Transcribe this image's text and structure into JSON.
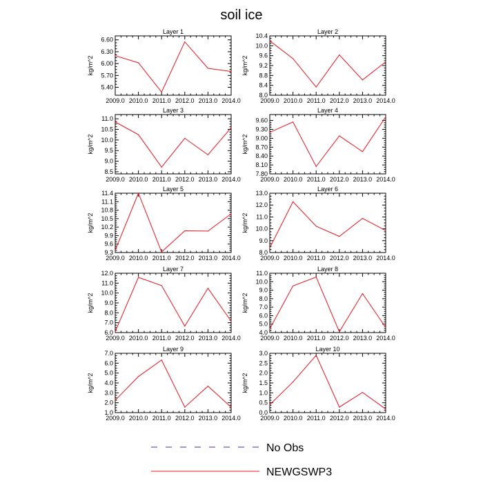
{
  "figure": {
    "title": "soil ice",
    "legend": [
      {
        "name": "No Obs",
        "color": "#3333aa",
        "style": "dashed"
      },
      {
        "name": "NEWGSWP3",
        "color": "#e8141e",
        "style": "solid"
      }
    ]
  },
  "chart_data": [
    {
      "type": "line",
      "title": "Layer 1",
      "ylabel": "kg/m^2",
      "x": [
        2009,
        2010,
        2011,
        2012,
        2013,
        2014
      ],
      "x_ticks": [
        "2009.0",
        "2010.0",
        "2011.0",
        "2012.0",
        "2013.0",
        "2014.0"
      ],
      "y_ticks": [
        "5.40",
        "5.70",
        "6.00",
        "6.30",
        "6.60"
      ],
      "ylim": [
        5.2,
        6.7
      ],
      "series": [
        {
          "name": "NEWGSWP3",
          "color": "#e8141e",
          "values": [
            6.2,
            6.02,
            5.28,
            6.55,
            5.88,
            5.8
          ]
        }
      ]
    },
    {
      "type": "line",
      "title": "Layer 2",
      "ylabel": "kg/m^2",
      "x": [
        2009,
        2010,
        2011,
        2012,
        2013,
        2014
      ],
      "x_ticks": [
        "2009.0",
        "2010.0",
        "2011.0",
        "2012.0",
        "2013.0",
        "2014.0"
      ],
      "y_ticks": [
        "8.0",
        "8.4",
        "8.8",
        "9.2",
        "9.6",
        "10.0",
        "10.4"
      ],
      "ylim": [
        8.0,
        10.4
      ],
      "series": [
        {
          "name": "NEWGSWP3",
          "color": "#e8141e",
          "values": [
            10.2,
            9.48,
            8.33,
            9.63,
            8.62,
            9.35
          ]
        }
      ]
    },
    {
      "type": "line",
      "title": "Layer 3",
      "ylabel": "kg/m^2",
      "x": [
        2009,
        2010,
        2011,
        2012,
        2013,
        2014
      ],
      "x_ticks": [
        "2009.0",
        "2010.0",
        "2011.0",
        "2012.0",
        "2013.0",
        "2014.0"
      ],
      "y_ticks": [
        "8.5",
        "9.0",
        "9.5",
        "10.0",
        "10.5",
        "11.0"
      ],
      "ylim": [
        8.4,
        11.2
      ],
      "series": [
        {
          "name": "NEWGSWP3",
          "color": "#e8141e",
          "values": [
            10.85,
            10.25,
            8.72,
            10.08,
            9.3,
            10.58
          ]
        }
      ]
    },
    {
      "type": "line",
      "title": "Layer 4",
      "ylabel": "kg/m^2",
      "x": [
        2009,
        2010,
        2011,
        2012,
        2013,
        2014
      ],
      "x_ticks": [
        "2009.0",
        "2010.0",
        "2011.0",
        "2012.0",
        "2013.0",
        "2014.0"
      ],
      "y_ticks": [
        "7.80",
        "8.10",
        "8.40",
        "8.70",
        "9.00",
        "9.30",
        "9.60"
      ],
      "ylim": [
        7.8,
        9.8
      ],
      "series": [
        {
          "name": "NEWGSWP3",
          "color": "#e8141e",
          "values": [
            9.2,
            9.55,
            8.05,
            9.08,
            8.55,
            9.72
          ]
        }
      ]
    },
    {
      "type": "line",
      "title": "Layer 5",
      "ylabel": "kg/m^2",
      "x": [
        2009,
        2010,
        2011,
        2012,
        2013,
        2014
      ],
      "x_ticks": [
        "2009.0",
        "2010.0",
        "2011.0",
        "2012.0",
        "2013.0",
        "2014.0"
      ],
      "y_ticks": [
        "9.3",
        "9.6",
        "9.9",
        "10.2",
        "10.5",
        "10.8",
        "11.1",
        "11.4"
      ],
      "ylim": [
        9.3,
        11.4
      ],
      "series": [
        {
          "name": "NEWGSWP3",
          "color": "#e8141e",
          "values": [
            9.38,
            11.4,
            9.32,
            10.07,
            10.06,
            10.67
          ]
        }
      ]
    },
    {
      "type": "line",
      "title": "Layer 6",
      "ylabel": "kg/m^2",
      "x": [
        2009,
        2010,
        2011,
        2012,
        2013,
        2014
      ],
      "x_ticks": [
        "2009.0",
        "2010.0",
        "2011.0",
        "2012.0",
        "2013.0",
        "2014.0"
      ],
      "y_ticks": [
        "8.0",
        "9.0",
        "10.0",
        "11.0",
        "12.0",
        "13.0"
      ],
      "ylim": [
        8.0,
        13.0
      ],
      "series": [
        {
          "name": "NEWGSWP3",
          "color": "#e8141e",
          "values": [
            8.4,
            12.28,
            10.22,
            9.36,
            10.88,
            9.85
          ]
        }
      ]
    },
    {
      "type": "line",
      "title": "Layer 7",
      "ylabel": "kg/m^2",
      "x": [
        2009,
        2010,
        2011,
        2012,
        2013,
        2014
      ],
      "x_ticks": [
        "2009.0",
        "2010.0",
        "2011.0",
        "2012.0",
        "2013.0",
        "2014.0"
      ],
      "y_ticks": [
        "6.0",
        "7.0",
        "8.0",
        "9.0",
        "10.0",
        "11.0",
        "12.0"
      ],
      "ylim": [
        6.0,
        12.0
      ],
      "series": [
        {
          "name": "NEWGSWP3",
          "color": "#e8141e",
          "values": [
            6.1,
            11.58,
            10.75,
            6.65,
            10.48,
            7.15
          ]
        }
      ]
    },
    {
      "type": "line",
      "title": "Layer 8",
      "ylabel": "kg/m^2",
      "x": [
        2009,
        2010,
        2011,
        2012,
        2013,
        2014
      ],
      "x_ticks": [
        "2009.0",
        "2010.0",
        "2011.0",
        "2012.0",
        "2013.0",
        "2014.0"
      ],
      "y_ticks": [
        "4.0",
        "5.0",
        "6.0",
        "7.0",
        "8.0",
        "9.0",
        "10.0",
        "11.0"
      ],
      "ylim": [
        4.0,
        11.0
      ],
      "series": [
        {
          "name": "NEWGSWP3",
          "color": "#e8141e",
          "values": [
            4.45,
            9.5,
            10.55,
            4.1,
            8.6,
            4.6
          ]
        }
      ]
    },
    {
      "type": "line",
      "title": "Layer 9",
      "ylabel": "kg/m^2",
      "x": [
        2009,
        2010,
        2011,
        2012,
        2013,
        2014
      ],
      "x_ticks": [
        "2009.0",
        "2010.0",
        "2011.0",
        "2012.0",
        "2013.0",
        "2014.0"
      ],
      "y_ticks": [
        "1.0",
        "2.0",
        "3.0",
        "4.0",
        "5.0",
        "6.0",
        "7.0"
      ],
      "ylim": [
        1.0,
        7.0
      ],
      "series": [
        {
          "name": "NEWGSWP3",
          "color": "#e8141e",
          "values": [
            2.25,
            4.65,
            6.32,
            1.55,
            3.68,
            1.55
          ]
        }
      ]
    },
    {
      "type": "line",
      "title": "Layer 10",
      "ylabel": "kg/m^2",
      "x": [
        2009,
        2010,
        2011,
        2012,
        2013,
        2014
      ],
      "x_ticks": [
        "2009.0",
        "2010.0",
        "2011.0",
        "2012.0",
        "2013.0",
        "2014.0"
      ],
      "y_ticks": [
        "0.0",
        "0.5",
        "1.0",
        "1.5",
        "2.0",
        "2.5",
        "3.0"
      ],
      "ylim": [
        0.0,
        3.0
      ],
      "series": [
        {
          "name": "NEWGSWP3",
          "color": "#e8141e",
          "values": [
            0.4,
            1.55,
            2.9,
            0.28,
            1.02,
            0.18
          ]
        }
      ]
    }
  ]
}
